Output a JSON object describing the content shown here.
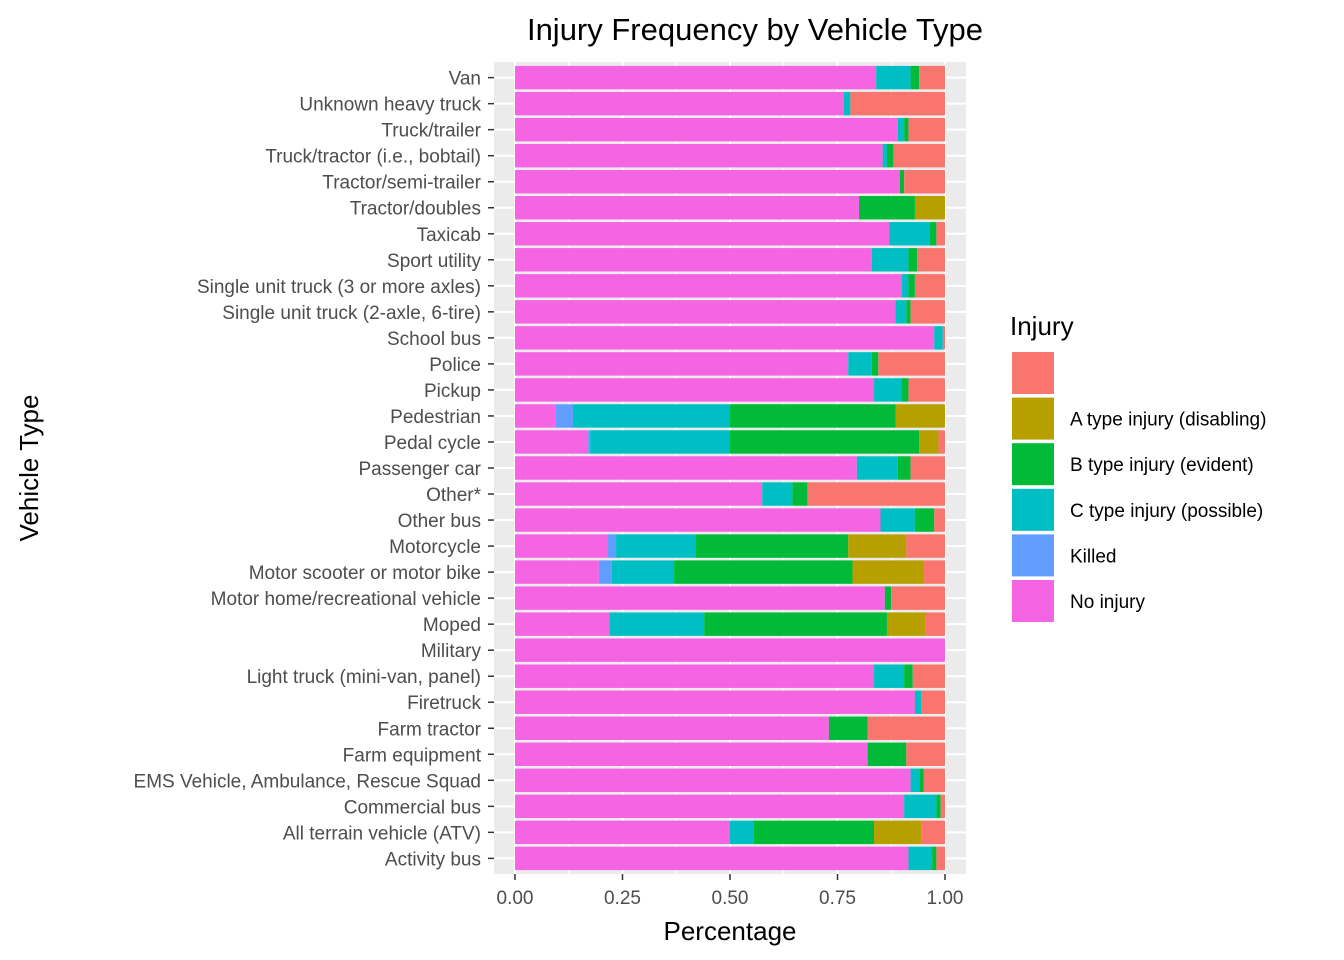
{
  "chart_data": {
    "type": "bar",
    "orientation": "horizontal",
    "stacked": true,
    "title": "Injury Frequency by Vehicle Type",
    "xlabel": "Percentage",
    "ylabel": "Vehicle Type",
    "xlim": [
      0,
      1
    ],
    "xticks": [
      "0.00",
      "0.25",
      "0.50",
      "0.75",
      "1.00"
    ],
    "xtick_values": [
      0,
      0.25,
      0.5,
      0.75,
      1.0
    ],
    "grid": true,
    "legend": {
      "title": "Injury",
      "placement": "right"
    },
    "categories": [
      "Van",
      "Unknown heavy truck",
      "Truck/trailer",
      "Truck/tractor (i.e., bobtail)",
      "Tractor/semi-trailer",
      "Tractor/doubles",
      "Taxicab",
      "Sport utility",
      "Single unit truck (3 or more axles)",
      "Single unit truck (2-axle, 6-tire)",
      "School bus",
      "Police",
      "Pickup",
      "Pedestrian",
      "Pedal cycle",
      "Passenger car",
      "Other*",
      "Other bus",
      "Motorcycle",
      "Motor scooter or motor bike",
      "Motor home/recreational vehicle",
      "Moped",
      "Military",
      "Light truck (mini-van, panel)",
      "Firetruck",
      "Farm tractor",
      "Farm equipment",
      "EMS Vehicle, Ambulance, Rescue Squad",
      "Commercial bus",
      "All terrain vehicle (ATV)",
      "Activity bus"
    ],
    "series": [
      {
        "name": "",
        "color": "#F8766D",
        "values": [
          0.06,
          0.22,
          0.085,
          0.12,
          0.095,
          0,
          0.02,
          0.065,
          0.07,
          0.08,
          0.005,
          0.155,
          0.085,
          0,
          0.015,
          0.08,
          0.32,
          0.025,
          0.09,
          0.05,
          0.125,
          0.045,
          0,
          0.075,
          0.055,
          0.18,
          0.09,
          0.05,
          0.01,
          0.055,
          0.02
        ]
      },
      {
        "name": "A type injury (disabling)",
        "color": "#B79F00",
        "values": [
          0,
          0,
          0,
          0,
          0,
          0.07,
          0,
          0,
          0,
          0,
          0,
          0,
          0,
          0.115,
          0.045,
          0,
          0,
          0,
          0.135,
          0.165,
          0,
          0.09,
          0,
          0,
          0,
          0,
          0,
          0,
          0,
          0.11,
          0
        ]
      },
      {
        "name": "B type injury (evident)",
        "color": "#00BA38",
        "values": [
          0.02,
          0,
          0.01,
          0.015,
          0.01,
          0.13,
          0.015,
          0.02,
          0.015,
          0.01,
          0,
          0.015,
          0.015,
          0.385,
          0.44,
          0.03,
          0.035,
          0.045,
          0.355,
          0.415,
          0.015,
          0.425,
          0,
          0.02,
          0,
          0.09,
          0.09,
          0.01,
          0.01,
          0.28,
          0.01
        ]
      },
      {
        "name": "C type injury (possible)",
        "color": "#00BFC4",
        "values": [
          0.08,
          0.015,
          0.015,
          0.01,
          0,
          0,
          0.095,
          0.085,
          0.015,
          0.025,
          0.02,
          0.055,
          0.065,
          0.365,
          0.325,
          0.095,
          0.07,
          0.08,
          0.185,
          0.145,
          0,
          0.22,
          0,
          0.07,
          0.015,
          0,
          0,
          0.02,
          0.075,
          0.055,
          0.055
        ]
      },
      {
        "name": "Killed",
        "color": "#619CFF",
        "values": [
          0,
          0,
          0,
          0,
          0,
          0,
          0,
          0,
          0,
          0,
          0,
          0,
          0,
          0.04,
          0.005,
          0,
          0,
          0,
          0.02,
          0.03,
          0,
          0,
          0,
          0,
          0,
          0,
          0,
          0,
          0,
          0,
          0
        ]
      },
      {
        "name": "No injury",
        "color": "#F564E3",
        "values": [
          0.84,
          0.765,
          0.89,
          0.855,
          0.895,
          0.8,
          0.87,
          0.83,
          0.9,
          0.885,
          0.975,
          0.775,
          0.835,
          0.095,
          0.17,
          0.795,
          0.575,
          0.85,
          0.215,
          0.195,
          0.86,
          0.22,
          1.0,
          0.835,
          0.93,
          0.73,
          0.82,
          0.92,
          0.905,
          0.5,
          0.915
        ]
      }
    ]
  }
}
